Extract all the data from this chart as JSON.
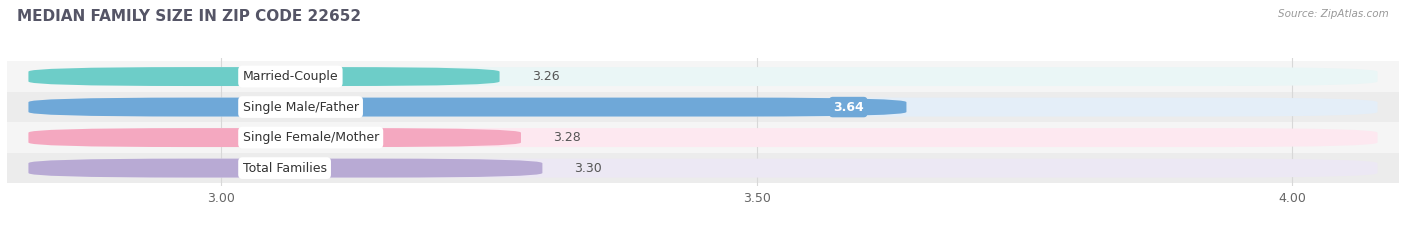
{
  "title": "MEDIAN FAMILY SIZE IN ZIP CODE 22652",
  "source": "Source: ZipAtlas.com",
  "categories": [
    "Married-Couple",
    "Single Male/Father",
    "Single Female/Mother",
    "Total Families"
  ],
  "values": [
    3.26,
    3.64,
    3.28,
    3.3
  ],
  "bar_colors": [
    "#6dcdc8",
    "#6fa8d8",
    "#f4a8c0",
    "#b8aad4"
  ],
  "bar_bg_colors": [
    "#eaf6f6",
    "#e4eef8",
    "#fde8f0",
    "#ece8f4"
  ],
  "label_colors": [
    "#333333",
    "#ffffff",
    "#333333",
    "#333333"
  ],
  "xmin": 2.8,
  "xmax": 4.1,
  "xticks": [
    3.0,
    3.5,
    4.0
  ],
  "tick_fontsize": 9,
  "bar_height": 0.62,
  "figsize": [
    14.06,
    2.33
  ],
  "dpi": 100,
  "title_fontsize": 11,
  "label_fontsize": 9,
  "value_fontsize": 9,
  "bg_color": "#f7f7f7",
  "grid_color": "#d8d8d8",
  "row_bg_colors": [
    "#f0f0f0",
    "#f0f0f0",
    "#f0f0f0",
    "#f0f0f0"
  ]
}
